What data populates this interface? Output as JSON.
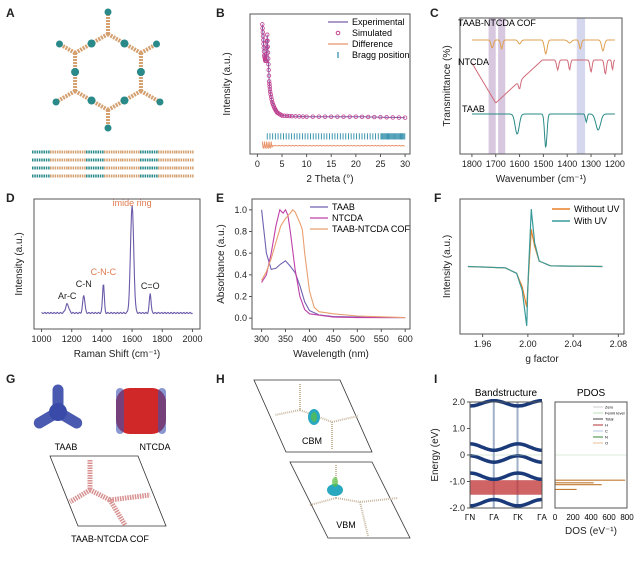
{
  "figure": {
    "panel_labels": [
      "A",
      "B",
      "C",
      "D",
      "E",
      "F",
      "G",
      "H",
      "I"
    ]
  },
  "chart_data": [
    {
      "panel": "A",
      "type": "other",
      "title": "",
      "description": "Top view honeycomb framework and side view stacked layers",
      "colors": {
        "node": "#2a8a8a",
        "linker": "#d4a070"
      }
    },
    {
      "panel": "B",
      "type": "line",
      "title": "",
      "xlabel": "2 Theta  (°)",
      "ylabel": "Intensity (a.u.)",
      "xlim": [
        -1.5,
        31
      ],
      "xticks": [
        0,
        5,
        10,
        15,
        20,
        25,
        30
      ],
      "legend": [
        "Experimental",
        "Simulated",
        "Difference",
        "Bragg position"
      ],
      "legend_position": "top-right",
      "series": [
        {
          "name": "Experimental",
          "color": "#7b5fa8",
          "x": [
            1,
            1.2,
            1.4,
            1.6,
            1.8,
            2,
            2.2,
            2.4,
            2.6,
            3,
            3.5,
            4,
            5,
            7,
            10,
            15,
            20,
            25,
            30
          ],
          "y": [
            0.95,
            0.8,
            0.65,
            0.6,
            0.6,
            0.85,
            0.62,
            0.4,
            0.3,
            0.2,
            0.14,
            0.1,
            0.07,
            0.065,
            0.06,
            0.06,
            0.06,
            0.055,
            0.05
          ]
        },
        {
          "name": "Simulated",
          "color": "#c0408f",
          "x": [
            1,
            1.2,
            1.4,
            1.6,
            1.8,
            2,
            2.2,
            2.4,
            2.6,
            3,
            3.5,
            4,
            5,
            7,
            10,
            15,
            20,
            25,
            30
          ],
          "y": [
            0.95,
            0.8,
            0.65,
            0.6,
            0.6,
            0.85,
            0.62,
            0.4,
            0.3,
            0.2,
            0.14,
            0.1,
            0.07,
            0.065,
            0.06,
            0.06,
            0.06,
            0.055,
            0.05
          ]
        },
        {
          "name": "Difference",
          "color": "#e8956a",
          "x": [
            1,
            1.5,
            2,
            2.5,
            3,
            5,
            30
          ],
          "y": [
            -0.22,
            -0.2,
            -0.24,
            -0.21,
            -0.22,
            -0.22,
            -0.22
          ]
        }
      ],
      "bragg_color": "#2a8aa8"
    },
    {
      "panel": "C",
      "type": "line",
      "title": "",
      "xlabel": "Wavenumber (cm⁻¹)",
      "ylabel": "Transmittance (%)",
      "xlim": [
        1850,
        1170
      ],
      "xticks": [
        1800,
        1700,
        1600,
        1500,
        1400,
        1300,
        1200
      ],
      "highlight_bands": [
        [
          1730,
          1700
        ],
        [
          1690,
          1660
        ],
        [
          1360,
          1325
        ]
      ],
      "highlight_colors": [
        "#c9b5d5",
        "#c9b5d5",
        "#c5c9e8"
      ],
      "series": [
        {
          "name": "TAAB-NTCDA COF",
          "color": "#e0a050"
        },
        {
          "name": "NTCDA",
          "color": "#d06a78"
        },
        {
          "name": "TAAB",
          "color": "#2a8a86"
        }
      ]
    },
    {
      "panel": "D",
      "type": "line",
      "title": "",
      "xlabel": "Raman Shift (cm⁻¹)",
      "ylabel": "Intensity (a.u.)",
      "xlim": [
        950,
        2050
      ],
      "xticks": [
        1000,
        1200,
        1400,
        1600,
        1800,
        2000
      ],
      "color": "#6a5aa8",
      "annotations": [
        {
          "text": "Ar-C",
          "x": 1170,
          "color": "#222"
        },
        {
          "text": "C-N",
          "x": 1280,
          "color": "#222"
        },
        {
          "text": "C-N-C",
          "x": 1410,
          "color": "#e07a50"
        },
        {
          "text": "imide ring",
          "x": 1600,
          "color": "#e07a50"
        },
        {
          "text": "C=O",
          "x": 1720,
          "color": "#222"
        }
      ]
    },
    {
      "panel": "E",
      "type": "line",
      "title": "",
      "xlabel": "Wavelength (nm)",
      "ylabel": "Absorbance (a.u.)",
      "xlim": [
        280,
        610
      ],
      "ylim": [
        -0.1,
        1.1
      ],
      "xticks": [
        300,
        350,
        400,
        450,
        500,
        550,
        600
      ],
      "yticks": [
        0.0,
        0.2,
        0.4,
        0.6,
        0.8,
        1.0
      ],
      "legend_position": "top-right",
      "series": [
        {
          "name": "TAAB",
          "color": "#7060b0",
          "x": [
            300,
            310,
            320,
            330,
            340,
            350,
            360,
            370,
            380,
            390,
            400,
            420,
            450,
            500,
            550,
            600
          ],
          "y": [
            1.0,
            0.6,
            0.45,
            0.46,
            0.5,
            0.53,
            0.48,
            0.42,
            0.3,
            0.15,
            0.07,
            0.03,
            0.015,
            0.01,
            0.005,
            0.005
          ]
        },
        {
          "name": "NTCDA",
          "color": "#c040a8",
          "x": [
            300,
            310,
            320,
            330,
            338,
            345,
            350,
            355,
            360,
            370,
            380,
            390,
            400,
            450,
            500,
            600
          ],
          "y": [
            0.33,
            0.4,
            0.6,
            0.85,
            1.0,
            0.97,
            1.0,
            0.95,
            0.8,
            0.45,
            0.2,
            0.08,
            0.04,
            0.01,
            0.005,
            0.005
          ]
        },
        {
          "name": "TAAB-NTCDA COF",
          "color": "#e8a070",
          "x": [
            300,
            310,
            320,
            330,
            340,
            350,
            360,
            365,
            370,
            380,
            385,
            390,
            400,
            410,
            420,
            450,
            500,
            600
          ],
          "y": [
            0.35,
            0.43,
            0.55,
            0.7,
            0.85,
            0.92,
            0.97,
            1.0,
            0.98,
            0.88,
            0.82,
            0.6,
            0.25,
            0.1,
            0.06,
            0.04,
            0.02,
            0.005
          ]
        }
      ]
    },
    {
      "panel": "F",
      "type": "line",
      "title": "",
      "xlabel": "g factor",
      "ylabel": "Intensity (a.u.)",
      "xlim": [
        1.94,
        2.085
      ],
      "xticks": [
        1.96,
        2.0,
        2.04,
        2.08
      ],
      "xtick_labels": [
        "1.96",
        "2.00",
        "2.04",
        "2.08"
      ],
      "legend_position": "top-right",
      "series": [
        {
          "name": "Without UV",
          "color": "#e8822a",
          "x": [
            1.947,
            1.98,
            1.99,
            1.995,
            1.999,
            2.0,
            2.003,
            2.006,
            2.01,
            2.02,
            2.066
          ],
          "y": [
            0,
            -0.02,
            -0.1,
            -0.3,
            -0.6,
            -0.3,
            0.55,
            0.3,
            0.08,
            0.01,
            0
          ]
        },
        {
          "name": "With UV",
          "color": "#3a9a9a",
          "x": [
            1.947,
            1.98,
            1.99,
            1.995,
            1.999,
            2.0,
            2.003,
            2.006,
            2.01,
            2.02,
            2.066
          ],
          "y": [
            0,
            -0.02,
            -0.1,
            -0.35,
            -0.88,
            -0.3,
            0.85,
            0.35,
            0.08,
            0.01,
            0
          ]
        }
      ]
    },
    {
      "panel": "G",
      "type": "other",
      "labels": [
        "TAAB",
        "NTCDA",
        "TAAB-NTCDA COF"
      ]
    },
    {
      "panel": "H",
      "type": "other",
      "labels": [
        "CBM",
        "VBM"
      ]
    },
    {
      "panel": "I",
      "type": "line",
      "subplots": [
        {
          "title": "Bandstructure",
          "ylabel": "Energy (eV)",
          "ylim": [
            -2.0,
            2.0
          ],
          "yticks": [
            -2.0,
            -1.0,
            0,
            1.0,
            2.0
          ],
          "ytick_labels": [
            "-2.0",
            "-1.0",
            "0",
            "1.0",
            "2.0"
          ],
          "xtick_labels": [
            "ΓN",
            "ΓA",
            "ΓK",
            "ΓA"
          ],
          "band_color": "#1a3a7a",
          "highlight_color": "#c03030"
        },
        {
          "title": "PDOS",
          "xlabel": "DOS (eV⁻¹)",
          "xlim": [
            0,
            800
          ],
          "xticks": [
            0,
            200,
            400,
            600,
            800
          ],
          "legend": [
            "Zero",
            "Fermi level",
            "Total",
            "H",
            "C",
            "N",
            "O"
          ],
          "legend_position": "top-right"
        }
      ]
    }
  ]
}
